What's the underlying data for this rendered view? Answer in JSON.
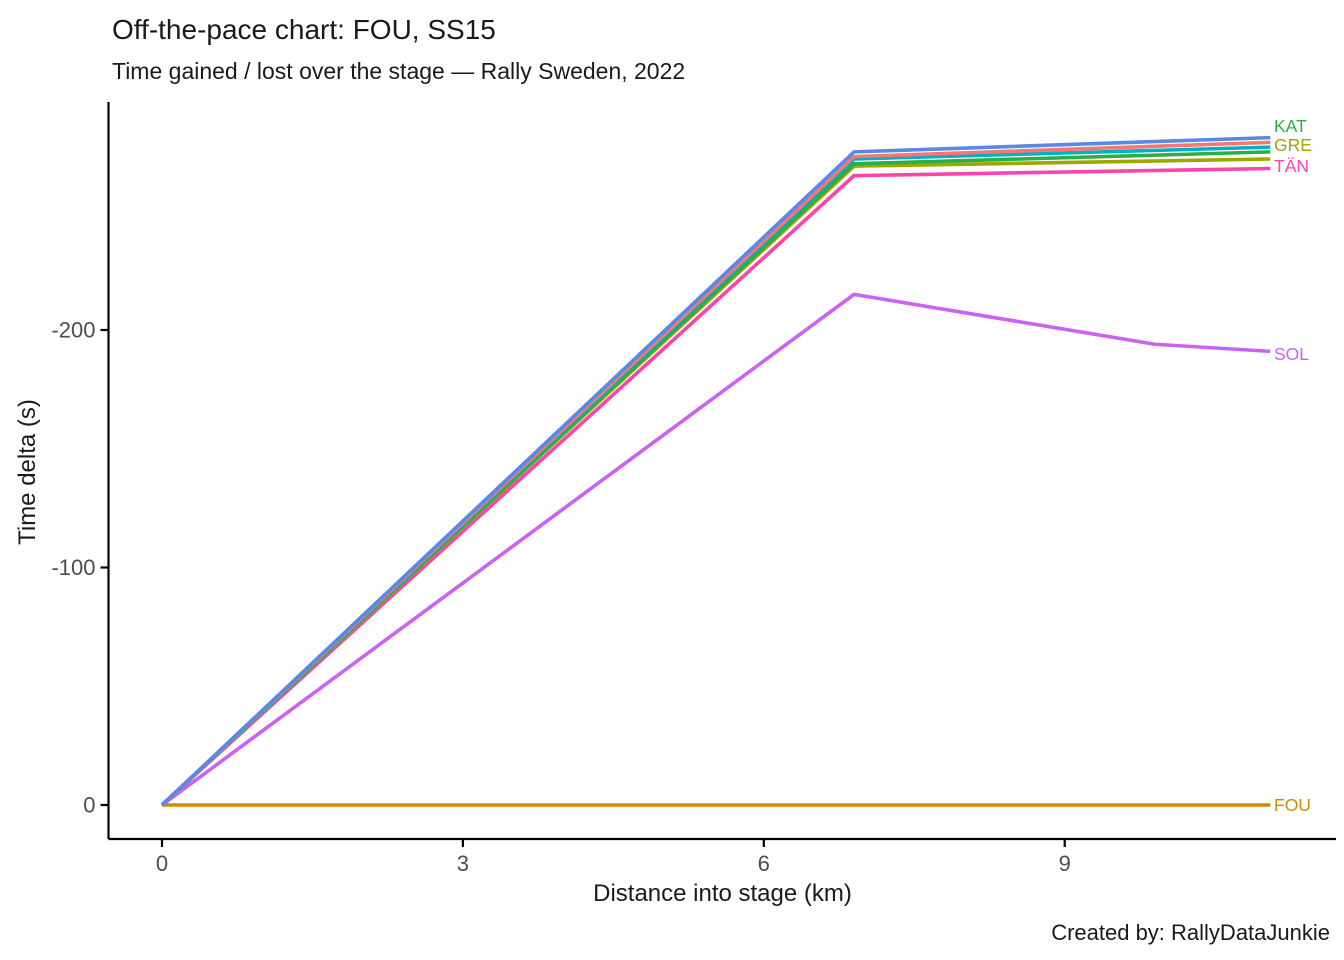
{
  "chart_data": {
    "type": "line",
    "title": "Off-the-pace chart: FOU, SS15",
    "subtitle": "Time gained / lost over the stage — Rally Sweden, 2022",
    "xlabel": "Distance into stage (km)",
    "ylabel": "Time delta (s)",
    "caption": "Created by: RallyDataJunkie",
    "x_ticks": [
      0,
      3,
      6,
      9
    ],
    "y_ticks": [
      0,
      -100,
      -200
    ],
    "xlim": [
      -0.5,
      11.7
    ],
    "ylim": [
      14,
      -297
    ],
    "y_axis_reversed": true,
    "grid": false,
    "legend": "direct line-end labels",
    "units": {
      "x": "km",
      "y": "s"
    },
    "reference_driver": "FOU",
    "series": [
      {
        "label": "FOU",
        "color": "#D08C00",
        "x": [
          0,
          6.9,
          11.05
        ],
        "y": [
          0,
          0,
          0
        ]
      },
      {
        "label": "SOL",
        "color": "#CB63F2",
        "x": [
          0,
          6.9,
          9.9,
          11.05
        ],
        "y": [
          0,
          -215,
          -194,
          -191
        ]
      },
      {
        "label": "TÄN",
        "color": "#FC44AC",
        "x": [
          0,
          6.9,
          11.05
        ],
        "y": [
          0,
          -265,
          -268
        ]
      },
      {
        "label": "GRE",
        "color": "#9DA700",
        "x": [
          0,
          6.9,
          11.05
        ],
        "y": [
          0,
          -269,
          -272
        ]
      },
      {
        "label": "KAT",
        "color": "#2BAE43",
        "x": [
          0,
          6.9,
          11.05
        ],
        "y": [
          0,
          -270,
          -275
        ]
      },
      {
        "label": "",
        "color": "#00AFC8",
        "x": [
          0,
          6.9,
          11.05
        ],
        "y": [
          0,
          -272,
          -277
        ]
      },
      {
        "label": "",
        "color": "#F8766D",
        "x": [
          0,
          6.9,
          11.05
        ],
        "y": [
          0,
          -273,
          -279
        ]
      },
      {
        "label": "",
        "color": "#5689E8",
        "x": [
          0,
          6.9,
          11.05
        ],
        "y": [
          0,
          -275,
          -281
        ]
      }
    ],
    "end_labels": [
      {
        "text": "KAT",
        "color": "#2BAE43",
        "value_s": -286
      },
      {
        "text": "GRE",
        "color": "#9DA700",
        "value_s": -278
      },
      {
        "text": "TÄN",
        "color": "#FC44AC",
        "value_s": -269
      },
      {
        "text": "SOL",
        "color": "#CB63F2",
        "value_s": -190
      },
      {
        "text": "FOU",
        "color": "#D08C00",
        "value_s": 0
      }
    ],
    "axis_style": {
      "axis_line_color": "#000000",
      "tick_label_color": "#4d4d4d"
    }
  }
}
